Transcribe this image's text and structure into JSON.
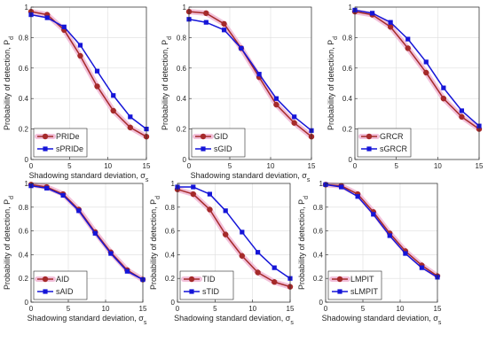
{
  "chart_data": [
    {
      "type": "line",
      "xlabel": "Shadowing standard deviation, σ",
      "xlabel_sub": "s",
      "ylabel": "Probability of detection, P",
      "ylabel_sub": "d",
      "xlim": [
        0,
        15
      ],
      "ylim": [
        0,
        1
      ],
      "xticks": [
        "0",
        "5",
        "10",
        "15"
      ],
      "yticks": [
        "0",
        "0.2",
        "0.4",
        "0.6",
        "0.8",
        "1"
      ],
      "grid": true,
      "legend_position": "bottom-left",
      "x": [
        0,
        2.1,
        4.3,
        6.4,
        8.6,
        10.7,
        12.9,
        15
      ],
      "series": [
        {
          "name": "PRIDe",
          "marker": "circle",
          "color": "#A52A2A",
          "halo": "#F0B6D4",
          "values": [
            0.97,
            0.95,
            0.85,
            0.68,
            0.48,
            0.32,
            0.21,
            0.15
          ]
        },
        {
          "name": "sPRIDe",
          "marker": "square",
          "color": "#1515D8",
          "halo": "",
          "values": [
            0.95,
            0.93,
            0.87,
            0.75,
            0.58,
            0.42,
            0.28,
            0.2
          ]
        }
      ]
    },
    {
      "type": "line",
      "xlabel": "Shadowing standard deviation, σ",
      "xlabel_sub": "s",
      "ylabel": "Probability of detection, P",
      "ylabel_sub": "d",
      "xlim": [
        0,
        15
      ],
      "ylim": [
        0,
        1
      ],
      "xticks": [
        "0",
        "5",
        "10",
        "15"
      ],
      "yticks": [
        "0",
        "0.2",
        "0.4",
        "0.6",
        "0.8",
        "1"
      ],
      "grid": true,
      "legend_position": "bottom-left",
      "x": [
        0,
        2.1,
        4.3,
        6.4,
        8.6,
        10.7,
        12.9,
        15
      ],
      "series": [
        {
          "name": "GID",
          "marker": "circle",
          "color": "#A52A2A",
          "halo": "#F0B6D4",
          "values": [
            0.97,
            0.96,
            0.89,
            0.73,
            0.54,
            0.36,
            0.24,
            0.15
          ]
        },
        {
          "name": "sGID",
          "marker": "square",
          "color": "#1515D8",
          "halo": "",
          "values": [
            0.92,
            0.9,
            0.85,
            0.73,
            0.56,
            0.4,
            0.28,
            0.19
          ]
        }
      ]
    },
    {
      "type": "line",
      "xlabel": "",
      "xlabel_sub": "",
      "ylabel": "Probability of detection, P",
      "ylabel_sub": "d",
      "xlim": [
        0,
        15
      ],
      "ylim": [
        0,
        1
      ],
      "xticks": [
        "0",
        "5",
        "10",
        "15"
      ],
      "yticks": [
        "0",
        "0.2",
        "0.4",
        "0.6",
        "0.8",
        "1"
      ],
      "grid": true,
      "legend_position": "bottom-left",
      "x": [
        0,
        2.1,
        4.3,
        6.4,
        8.6,
        10.7,
        12.9,
        15
      ],
      "series": [
        {
          "name": "GRCR",
          "marker": "circle",
          "color": "#A52A2A",
          "halo": "#F0B6D4",
          "values": [
            0.97,
            0.95,
            0.87,
            0.73,
            0.57,
            0.4,
            0.28,
            0.2
          ]
        },
        {
          "name": "sGRCR",
          "marker": "square",
          "color": "#1515D8",
          "halo": "",
          "values": [
            0.98,
            0.96,
            0.9,
            0.79,
            0.64,
            0.47,
            0.32,
            0.22
          ]
        }
      ]
    },
    {
      "type": "line",
      "xlabel": "Shadowing standard deviation, σ",
      "xlabel_sub": "s",
      "ylabel": "Probability of detection, P",
      "ylabel_sub": "d",
      "xlim": [
        0,
        15
      ],
      "ylim": [
        0,
        1
      ],
      "xticks": [
        "0",
        "5",
        "10",
        "15"
      ],
      "yticks": [
        "0",
        "0.2",
        "0.4",
        "0.6",
        "0.8",
        "1"
      ],
      "grid": true,
      "legend_position": "bottom-left",
      "x": [
        0,
        2.1,
        4.3,
        6.4,
        8.6,
        10.7,
        12.9,
        15
      ],
      "series": [
        {
          "name": "AID",
          "marker": "circle",
          "color": "#A52A2A",
          "halo": "#F0B6D4",
          "values": [
            0.99,
            0.97,
            0.91,
            0.78,
            0.59,
            0.42,
            0.27,
            0.19
          ]
        },
        {
          "name": "sAID",
          "marker": "square",
          "color": "#1515D8",
          "halo": "",
          "values": [
            0.98,
            0.96,
            0.9,
            0.77,
            0.58,
            0.41,
            0.26,
            0.19
          ]
        }
      ]
    },
    {
      "type": "line",
      "xlabel": "Shadowing standard deviation, σ",
      "xlabel_sub": "s",
      "ylabel": "Probability of detection, P",
      "ylabel_sub": "d",
      "xlim": [
        0,
        15
      ],
      "ylim": [
        0,
        1
      ],
      "xticks": [
        "0",
        "5",
        "10",
        "15"
      ],
      "yticks": [
        "0",
        "0.2",
        "0.4",
        "0.6",
        "0.8",
        "1"
      ],
      "grid": true,
      "legend_position": "bottom-left",
      "x": [
        0,
        2.1,
        4.3,
        6.4,
        8.6,
        10.7,
        12.9,
        15
      ],
      "series": [
        {
          "name": "TID",
          "marker": "circle",
          "color": "#A52A2A",
          "halo": "#F0B6D4",
          "values": [
            0.95,
            0.91,
            0.78,
            0.57,
            0.39,
            0.25,
            0.17,
            0.13
          ]
        },
        {
          "name": "sTID",
          "marker": "square",
          "color": "#1515D8",
          "halo": "",
          "values": [
            0.97,
            0.97,
            0.91,
            0.77,
            0.59,
            0.42,
            0.29,
            0.2
          ]
        }
      ]
    },
    {
      "type": "line",
      "xlabel": "Shadowing standard deviation, σ",
      "xlabel_sub": "s",
      "ylabel": "Probability of detection, P",
      "ylabel_sub": "d",
      "xlim": [
        0,
        15
      ],
      "ylim": [
        0,
        1
      ],
      "xticks": [
        "0",
        "5",
        "10",
        "15"
      ],
      "yticks": [
        "0",
        "0.2",
        "0.4",
        "0.6",
        "0.8",
        "1"
      ],
      "grid": true,
      "legend_position": "bottom-left",
      "x": [
        0,
        2.1,
        4.3,
        6.4,
        8.6,
        10.7,
        12.9,
        15
      ],
      "series": [
        {
          "name": "LMPIT",
          "marker": "circle",
          "color": "#A52A2A",
          "halo": "#F0B6D4",
          "values": [
            0.99,
            0.98,
            0.91,
            0.76,
            0.58,
            0.43,
            0.31,
            0.22
          ]
        },
        {
          "name": "sLMPIT",
          "marker": "square",
          "color": "#1515D8",
          "halo": "",
          "values": [
            0.99,
            0.97,
            0.89,
            0.74,
            0.56,
            0.41,
            0.29,
            0.21
          ]
        }
      ]
    }
  ]
}
